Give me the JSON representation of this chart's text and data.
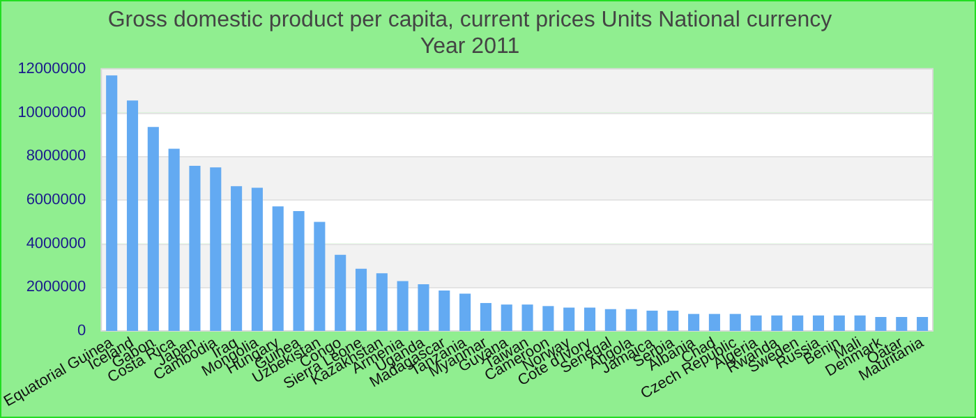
{
  "chart_data": {
    "type": "bar",
    "title": "Gross domestic product per capita, current prices Units National currency",
    "subtitle": "Year 2011",
    "categories": [
      "Equatorial Guinea",
      "Iceland",
      "Gabon",
      "Costa Rica",
      "Japan",
      "Cambodia",
      "Iraq",
      "Mongolia",
      "Hungary",
      "Guinea",
      "Uzbekistan",
      "Congo",
      "Sierra Leone",
      "Kazakhstan",
      "Armenia",
      "Uganda",
      "Madagascar",
      "Tanzania",
      "Myanmar",
      "Guyana",
      "Taiwan",
      "Cameroon",
      "Norway",
      "Cote d'Ivory",
      "Senegal",
      "Angola",
      "Jamaica",
      "Serbia",
      "Albania",
      "Chad",
      "Czech Republic",
      "Algeria",
      "Rwanda",
      "Sweden",
      "Russia",
      "Benin",
      "Mali",
      "Denmark",
      "Qatar",
      "Mauritania"
    ],
    "values": [
      11700000,
      10550000,
      9340000,
      8340000,
      7560000,
      7490000,
      6630000,
      6560000,
      5700000,
      5490000,
      4990000,
      3490000,
      2850000,
      2640000,
      2280000,
      2140000,
      1850000,
      1710000,
      1280000,
      1210000,
      1210000,
      1140000,
      1070000,
      1070000,
      1000000,
      1000000,
      930000,
      930000,
      780000,
      780000,
      780000,
      710000,
      710000,
      710000,
      710000,
      710000,
      710000,
      640000,
      640000,
      640000
    ],
    "color": "#63aaf2",
    "ylim": [
      0,
      12000000
    ],
    "yticks": [
      0,
      2000000,
      4000000,
      6000000,
      8000000,
      10000000,
      12000000
    ],
    "grid": "y",
    "legend": false
  }
}
